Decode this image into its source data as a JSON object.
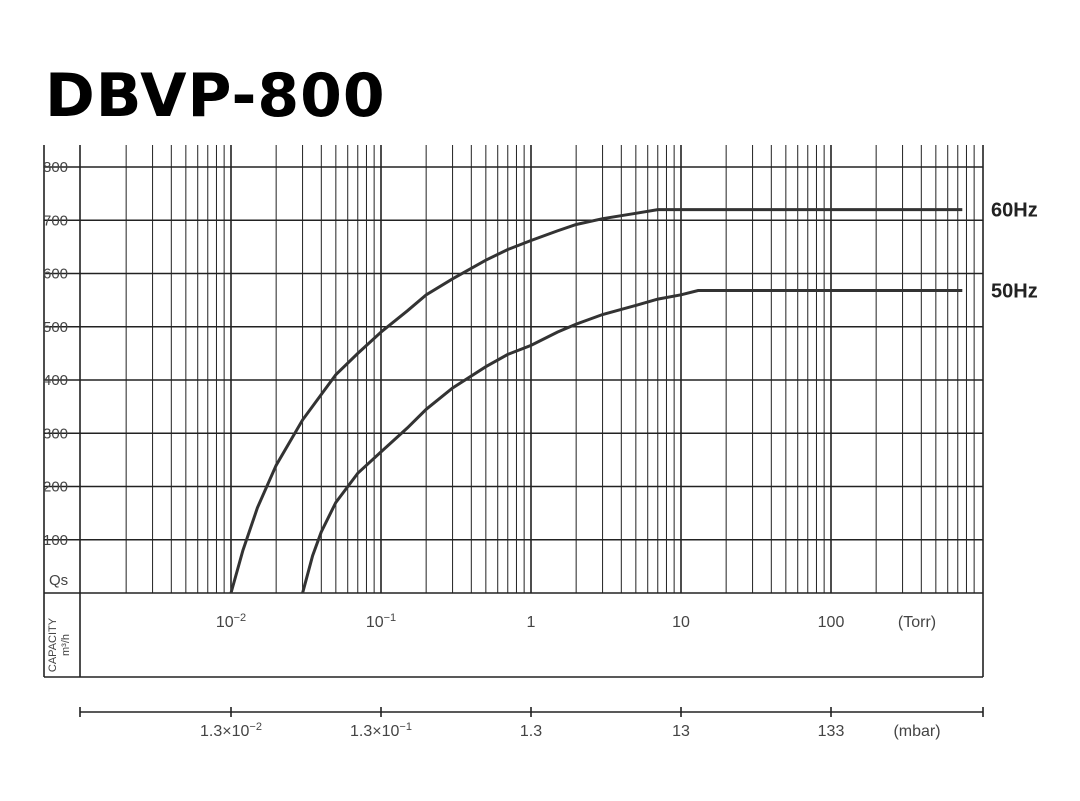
{
  "page_title": "DBVP-800",
  "chart_data": {
    "type": "line",
    "x_scale": "log",
    "xlim": [
      0.0016,
      750
    ],
    "ylim": [
      0,
      800
    ],
    "y_ticks": [
      100,
      200,
      300,
      400,
      500,
      600,
      700,
      800
    ],
    "y_tick_labels": [
      "100",
      "200",
      "300",
      "400",
      "500",
      "600",
      "700",
      "800"
    ],
    "y_axis_symbol": "Qs",
    "y_axis_label_line1": "CAPACITY",
    "y_axis_label_line2": "m³/h",
    "x_ticks_torr": [
      0.01,
      0.1,
      1,
      10,
      100
    ],
    "x_tick_labels_torr": [
      {
        "base": "10",
        "exp": "−2"
      },
      {
        "base": "10",
        "exp": "−1"
      },
      {
        "base": "1",
        "exp": ""
      },
      {
        "base": "10",
        "exp": ""
      },
      {
        "base": "100",
        "exp": ""
      }
    ],
    "x_unit_torr": "(Torr)",
    "x_tick_labels_mbar": [
      {
        "base": "1.3×10",
        "exp": "−2"
      },
      {
        "base": "1.3×10",
        "exp": "−1"
      },
      {
        "base": "1.3",
        "exp": ""
      },
      {
        "base": "13",
        "exp": ""
      },
      {
        "base": "133",
        "exp": ""
      }
    ],
    "x_unit_mbar": "(mbar)",
    "grid": true,
    "series": [
      {
        "name": "60Hz",
        "x": [
          0.01,
          0.012,
          0.015,
          0.02,
          0.03,
          0.05,
          0.07,
          0.1,
          0.15,
          0.2,
          0.3,
          0.5,
          0.7,
          1,
          1.5,
          2,
          3,
          5,
          7,
          10,
          50,
          100,
          750
        ],
        "y": [
          0,
          80,
          160,
          240,
          325,
          410,
          450,
          490,
          530,
          560,
          590,
          625,
          645,
          662,
          680,
          692,
          703,
          713,
          720,
          720,
          720,
          720,
          720
        ]
      },
      {
        "name": "50Hz",
        "x": [
          0.03,
          0.035,
          0.04,
          0.05,
          0.07,
          0.1,
          0.15,
          0.2,
          0.3,
          0.5,
          0.7,
          1,
          1.5,
          2,
          3,
          5,
          7,
          10,
          13,
          50,
          100,
          750
        ],
        "y": [
          0,
          70,
          115,
          170,
          225,
          265,
          310,
          345,
          385,
          425,
          448,
          465,
          490,
          505,
          523,
          540,
          552,
          560,
          568,
          568,
          568,
          568
        ]
      }
    ]
  }
}
